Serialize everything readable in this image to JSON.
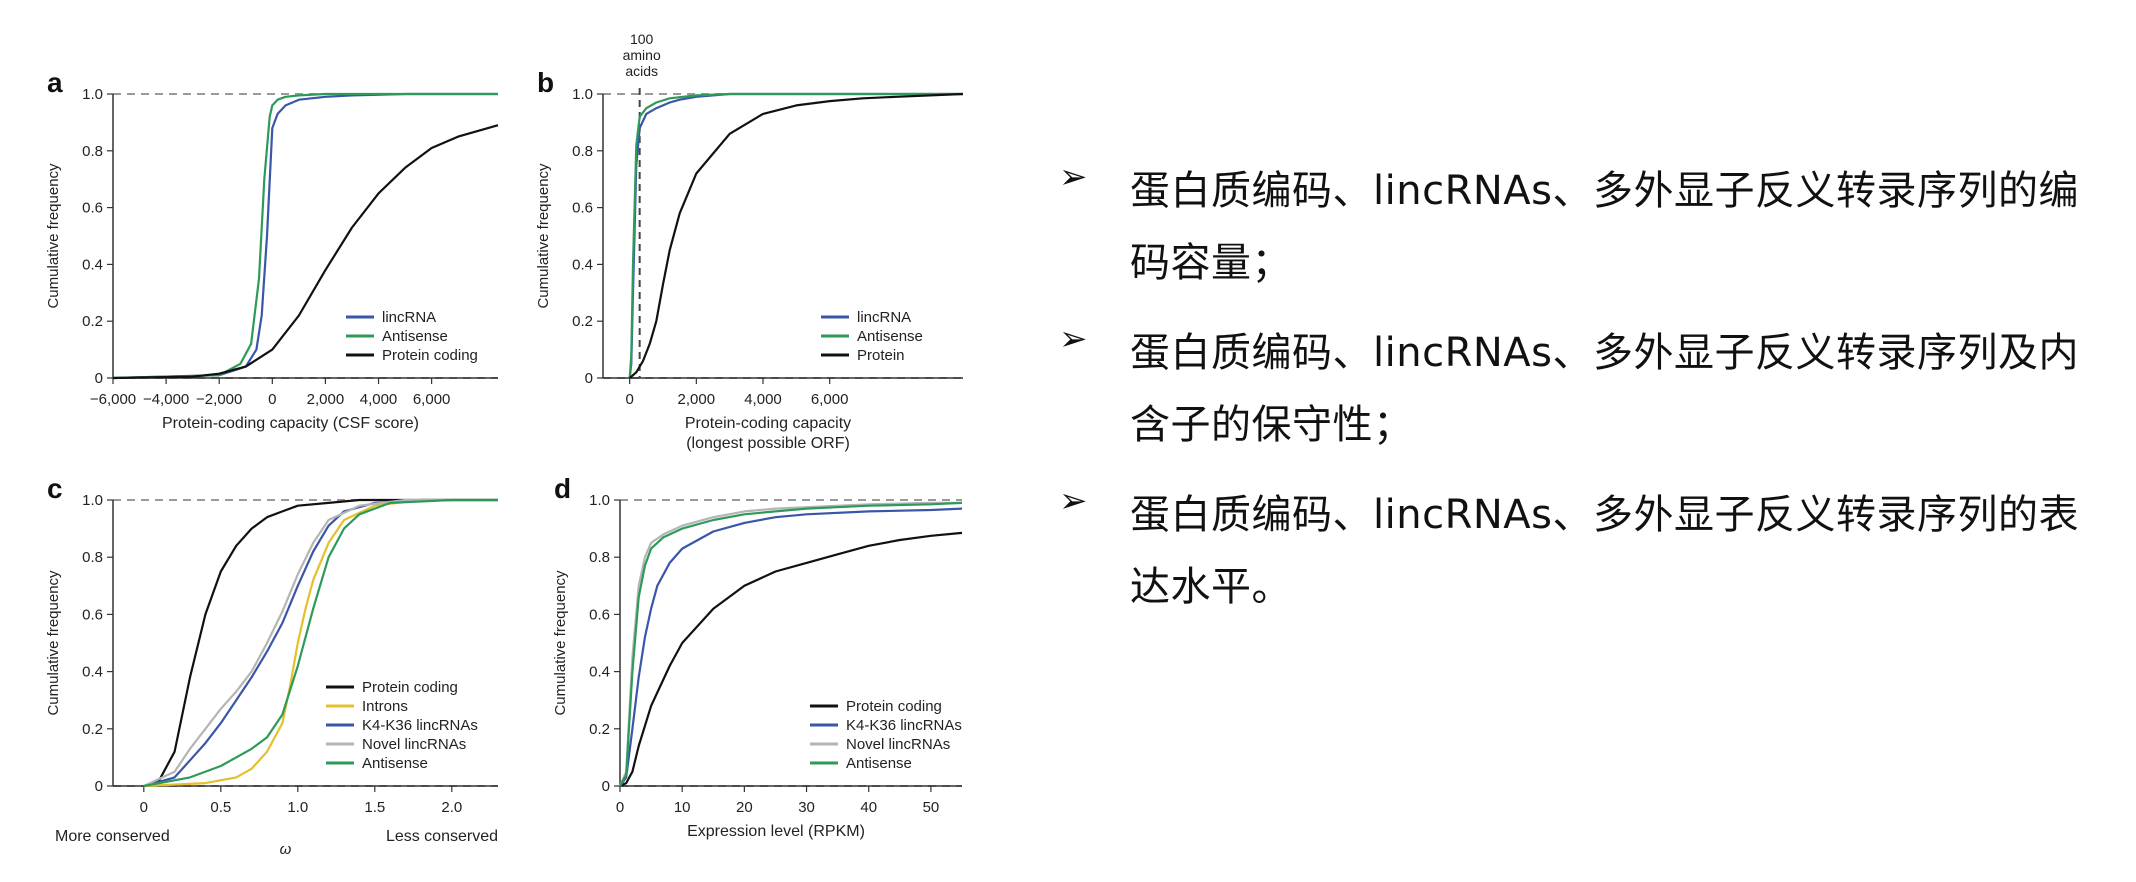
{
  "colors": {
    "protein": "#111111",
    "lincrna": "#3a56a8",
    "antisense": "#2e9a5a",
    "introns": "#e3c02d",
    "novel": "#b5b5b5",
    "dashed": "#9a9a9a"
  },
  "bullets": [
    {
      "marker": "➢",
      "text": "蛋白质编码、lincRNAs、多外显子反义转录序列的编码容量；"
    },
    {
      "marker": "➢",
      "text": "蛋白质编码、lincRNAs、多外显子反义转录序列及内含子的保守性；"
    },
    {
      "marker": "➢",
      "text": "蛋白质编码、lincRNAs、多外显子反义转录序列的表达水平。"
    }
  ],
  "chart_data": [
    {
      "panel": "a",
      "type": "line",
      "ylabel": "Cumulative frequency",
      "xlabel": [
        "Protein-coding capacity (CSF score)"
      ],
      "xlim": [
        -6000,
        8500
      ],
      "ylim": [
        0,
        1
      ],
      "xticks": [
        -6000,
        -4000,
        -2000,
        0,
        2000,
        4000,
        6000
      ],
      "xtick_labels": [
        "−6,000",
        "−4,000",
        "−2,000",
        "0",
        "2,000",
        "4,000",
        "6,000"
      ],
      "yticks": [
        0,
        0.2,
        0.4,
        0.6,
        0.8,
        1.0
      ],
      "ytick_labels": [
        "0",
        "0.2",
        "0.4",
        "0.6",
        "0.8",
        "1.0"
      ],
      "legend": [
        "lincRNA",
        "Antisense",
        "Protein coding"
      ],
      "series": [
        {
          "name": "lincRNA",
          "color_key": "lincrna",
          "x": [
            -6000,
            -2000,
            -1000,
            -600,
            -400,
            -200,
            0,
            200,
            500,
            1000,
            2000,
            3000,
            5000,
            8500
          ],
          "y": [
            0,
            0.01,
            0.04,
            0.1,
            0.22,
            0.5,
            0.88,
            0.93,
            0.96,
            0.98,
            0.99,
            0.995,
            1,
            1
          ]
        },
        {
          "name": "Antisense",
          "color_key": "antisense",
          "x": [
            -6000,
            -2000,
            -1200,
            -800,
            -500,
            -300,
            -100,
            0,
            200,
            500,
            1000,
            2000,
            5000,
            8500
          ],
          "y": [
            0,
            0.01,
            0.05,
            0.12,
            0.35,
            0.7,
            0.92,
            0.96,
            0.98,
            0.99,
            0.995,
            1,
            1,
            1
          ]
        },
        {
          "name": "Protein coding",
          "color_key": "protein",
          "x": [
            -6000,
            -3000,
            -2000,
            -1000,
            0,
            1000,
            2000,
            3000,
            4000,
            5000,
            6000,
            7000,
            8500
          ],
          "y": [
            0,
            0.005,
            0.015,
            0.04,
            0.1,
            0.22,
            0.38,
            0.53,
            0.65,
            0.74,
            0.81,
            0.85,
            0.89
          ]
        }
      ]
    },
    {
      "panel": "b",
      "type": "line",
      "ylabel": "Cumulative frequency",
      "xlabel": [
        "Protein-coding capacity",
        "(longest possible ORF)"
      ],
      "xlim": [
        -800,
        10000
      ],
      "ylim": [
        0,
        1
      ],
      "xticks": [
        0,
        2000,
        4000,
        6000
      ],
      "xtick_labels": [
        "0",
        "2,000",
        "4,000",
        "6,000"
      ],
      "yticks": [
        0,
        0.2,
        0.4,
        0.6,
        0.8,
        1.0
      ],
      "ytick_labels": [
        "0",
        "0.2",
        "0.4",
        "0.6",
        "0.8",
        "1.0"
      ],
      "vline": {
        "x": 300,
        "label": [
          "100",
          "amino",
          "acids"
        ]
      },
      "legend": [
        "lincRNA",
        "Antisense",
        "Protein"
      ],
      "series": [
        {
          "name": "lincRNA",
          "color_key": "lincrna",
          "x": [
            0,
            50,
            100,
            200,
            300,
            500,
            800,
            1200,
            1500,
            2000,
            3000,
            4000,
            10000
          ],
          "y": [
            0,
            0.05,
            0.3,
            0.75,
            0.88,
            0.93,
            0.95,
            0.97,
            0.98,
            0.99,
            1,
            1,
            1
          ]
        },
        {
          "name": "Antisense",
          "color_key": "antisense",
          "x": [
            0,
            50,
            100,
            200,
            300,
            500,
            800,
            1200,
            2000,
            3000,
            10000
          ],
          "y": [
            0,
            0.08,
            0.4,
            0.82,
            0.92,
            0.95,
            0.97,
            0.985,
            0.995,
            1,
            1
          ]
        },
        {
          "name": "Protein",
          "color_key": "protein",
          "x": [
            0,
            200,
            400,
            600,
            800,
            1000,
            1200,
            1500,
            2000,
            3000,
            4000,
            5000,
            6000,
            7000,
            8000,
            10000
          ],
          "y": [
            0,
            0.02,
            0.06,
            0.12,
            0.2,
            0.33,
            0.45,
            0.58,
            0.72,
            0.86,
            0.93,
            0.96,
            0.975,
            0.985,
            0.99,
            1
          ]
        }
      ]
    },
    {
      "panel": "c",
      "type": "line",
      "ylabel": "Cumulative frequency",
      "xlabel": [
        "ω"
      ],
      "xlabel_left": "More conserved",
      "xlabel_right": "Less conserved",
      "xlim": [
        -0.2,
        2.3
      ],
      "ylim": [
        0,
        1
      ],
      "xticks": [
        0,
        0.5,
        1.0,
        1.5,
        2.0
      ],
      "xtick_labels": [
        "0",
        "0.5",
        "1.0",
        "1.5",
        "2.0"
      ],
      "yticks": [
        0,
        0.2,
        0.4,
        0.6,
        0.8,
        1.0
      ],
      "ytick_labels": [
        "0",
        "0.2",
        "0.4",
        "0.6",
        "0.8",
        "1.0"
      ],
      "legend": [
        "Protein coding",
        "Introns",
        "K4-K36 lincRNAs",
        "Novel lincRNAs",
        "Antisense"
      ],
      "series": [
        {
          "name": "Protein coding",
          "color_key": "protein",
          "x": [
            0,
            0.1,
            0.2,
            0.3,
            0.4,
            0.5,
            0.6,
            0.7,
            0.8,
            0.9,
            1.0,
            1.2,
            1.4,
            1.6,
            2.3
          ],
          "y": [
            0,
            0.02,
            0.12,
            0.38,
            0.6,
            0.75,
            0.84,
            0.9,
            0.94,
            0.96,
            0.98,
            0.99,
            1,
            1,
            1
          ]
        },
        {
          "name": "Introns",
          "color_key": "introns",
          "x": [
            0,
            0.4,
            0.6,
            0.7,
            0.8,
            0.9,
            0.95,
            1.0,
            1.05,
            1.1,
            1.2,
            1.3,
            1.5,
            1.8,
            2.3
          ],
          "y": [
            0,
            0.01,
            0.03,
            0.06,
            0.12,
            0.22,
            0.35,
            0.5,
            0.62,
            0.72,
            0.85,
            0.93,
            0.98,
            1,
            1
          ]
        },
        {
          "name": "K4-K36 lincRNAs",
          "color_key": "lincrna",
          "x": [
            0,
            0.2,
            0.3,
            0.4,
            0.5,
            0.6,
            0.7,
            0.8,
            0.9,
            1.0,
            1.1,
            1.2,
            1.3,
            1.5,
            1.8,
            2.3
          ],
          "y": [
            0,
            0.03,
            0.09,
            0.15,
            0.22,
            0.3,
            0.38,
            0.47,
            0.57,
            0.7,
            0.82,
            0.91,
            0.96,
            0.99,
            1,
            1
          ]
        },
        {
          "name": "Novel lincRNAs",
          "color_key": "novel",
          "x": [
            0,
            0.2,
            0.3,
            0.4,
            0.5,
            0.6,
            0.7,
            0.8,
            0.9,
            1.0,
            1.1,
            1.2,
            1.4,
            1.7,
            2.3
          ],
          "y": [
            0,
            0.05,
            0.13,
            0.2,
            0.27,
            0.33,
            0.4,
            0.5,
            0.61,
            0.74,
            0.85,
            0.93,
            0.98,
            1,
            1
          ]
        },
        {
          "name": "Antisense",
          "color_key": "antisense",
          "x": [
            0,
            0.3,
            0.5,
            0.6,
            0.7,
            0.8,
            0.9,
            1.0,
            1.1,
            1.2,
            1.3,
            1.4,
            1.6,
            2.0,
            2.3
          ],
          "y": [
            0,
            0.03,
            0.07,
            0.1,
            0.13,
            0.17,
            0.25,
            0.42,
            0.62,
            0.8,
            0.9,
            0.95,
            0.99,
            1,
            1
          ]
        }
      ]
    },
    {
      "panel": "d",
      "type": "line",
      "ylabel": "Cumulative frequency",
      "xlabel": [
        "Expression level (RPKM)"
      ],
      "xlim": [
        0,
        55
      ],
      "ylim": [
        0,
        1
      ],
      "xticks": [
        0,
        10,
        20,
        30,
        40,
        50
      ],
      "xtick_labels": [
        "0",
        "10",
        "20",
        "30",
        "40",
        "50"
      ],
      "yticks": [
        0,
        0.2,
        0.4,
        0.6,
        0.8,
        1.0
      ],
      "ytick_labels": [
        "0",
        "0.2",
        "0.4",
        "0.6",
        "0.8",
        "1.0"
      ],
      "legend": [
        "Protein coding",
        "K4-K36 lincRNAs",
        "Novel lincRNAs",
        "Antisense"
      ],
      "series": [
        {
          "name": "Protein coding",
          "color_key": "protein",
          "x": [
            0,
            1,
            2,
            3,
            5,
            8,
            10,
            15,
            20,
            25,
            30,
            35,
            40,
            45,
            50,
            55
          ],
          "y": [
            0,
            0.01,
            0.05,
            0.14,
            0.28,
            0.42,
            0.5,
            0.62,
            0.7,
            0.75,
            0.78,
            0.81,
            0.84,
            0.86,
            0.875,
            0.885
          ]
        },
        {
          "name": "K4-K36 lincRNAs",
          "color_key": "lincrna",
          "x": [
            0,
            1,
            2,
            3,
            4,
            5,
            6,
            8,
            10,
            15,
            20,
            25,
            30,
            40,
            50,
            55
          ],
          "y": [
            0,
            0.03,
            0.2,
            0.38,
            0.52,
            0.62,
            0.7,
            0.78,
            0.83,
            0.89,
            0.92,
            0.94,
            0.95,
            0.96,
            0.965,
            0.97
          ]
        },
        {
          "name": "Novel lincRNAs",
          "color_key": "novel",
          "x": [
            0,
            1,
            2,
            3,
            4,
            5,
            7,
            10,
            15,
            20,
            25,
            30,
            40,
            50,
            55
          ],
          "y": [
            0,
            0.05,
            0.45,
            0.7,
            0.8,
            0.85,
            0.88,
            0.91,
            0.94,
            0.96,
            0.97,
            0.975,
            0.985,
            0.99,
            0.99
          ]
        },
        {
          "name": "Antisense",
          "color_key": "antisense",
          "x": [
            0,
            1,
            2,
            3,
            4,
            5,
            7,
            10,
            15,
            20,
            25,
            30,
            40,
            50,
            55
          ],
          "y": [
            0,
            0.04,
            0.4,
            0.66,
            0.77,
            0.83,
            0.87,
            0.9,
            0.93,
            0.95,
            0.96,
            0.97,
            0.98,
            0.985,
            0.99
          ]
        }
      ]
    }
  ]
}
